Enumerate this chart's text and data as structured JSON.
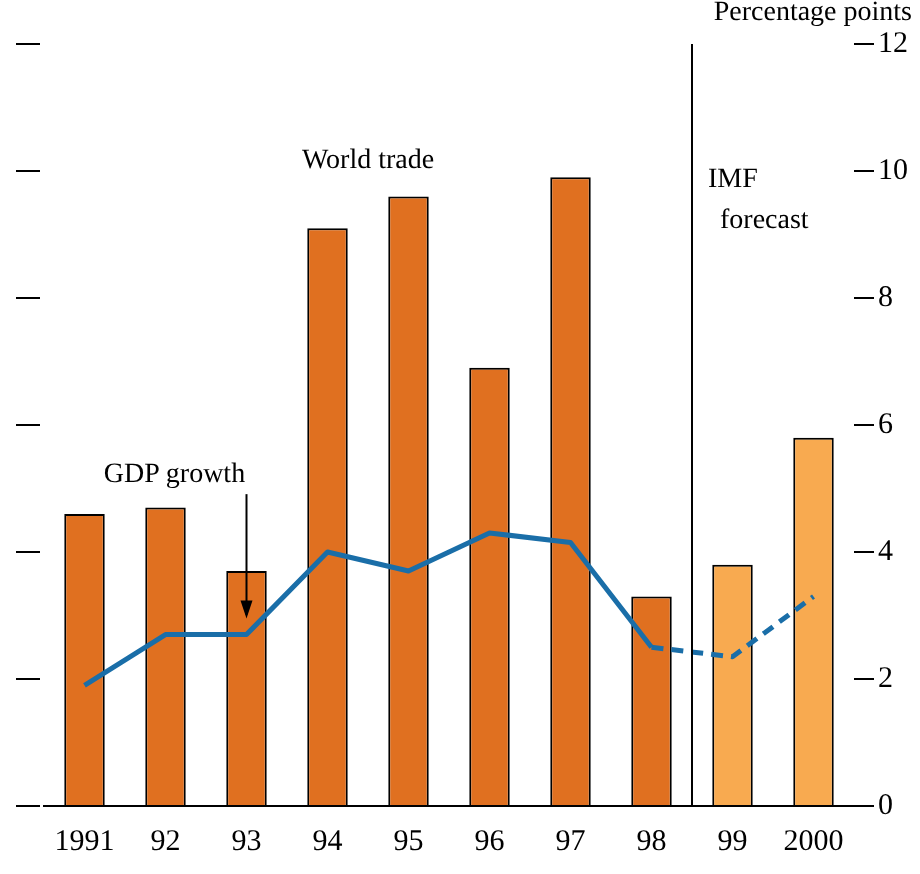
{
  "chart_data": {
    "type": "bar",
    "ylabel": "Percentage points",
    "categories": [
      "1991",
      "92",
      "93",
      "94",
      "95",
      "96",
      "97",
      "98",
      "99",
      "2000"
    ],
    "series": [
      {
        "colors": [
          "#e07020",
          "#e07020",
          "#e07020",
          "#e07020",
          "#e07020",
          "#e07020",
          "#e07020",
          "#e07020",
          "#f8aa50",
          "#f8aa50"
        ],
        "values": [
          4.6,
          4.7,
          3.7,
          9.1,
          9.6,
          6.9,
          9.9,
          3.3,
          3.8,
          5.8
        ]
      },
      {
        "type": "line",
        "color": "#1a6ea8",
        "line_style": "solid",
        "values": [
          1.9,
          2.7,
          2.7,
          4.0,
          3.7,
          4.3,
          4.15,
          2.5,
          null,
          null
        ]
      },
      {
        "type": "line",
        "color": "#1a6ea8",
        "line_style": "dashed",
        "values": [
          null,
          null,
          null,
          null,
          null,
          null,
          null,
          2.5,
          2.35,
          3.3
        ]
      }
    ],
    "ylim": [
      0,
      12
    ],
    "yticks": [
      0,
      2,
      4,
      6,
      8,
      10,
      12
    ],
    "grid": false,
    "legend": false,
    "marker": "none",
    "annotations": [
      "World trade",
      "GDP growth",
      "IMF forecast"
    ]
  }
}
